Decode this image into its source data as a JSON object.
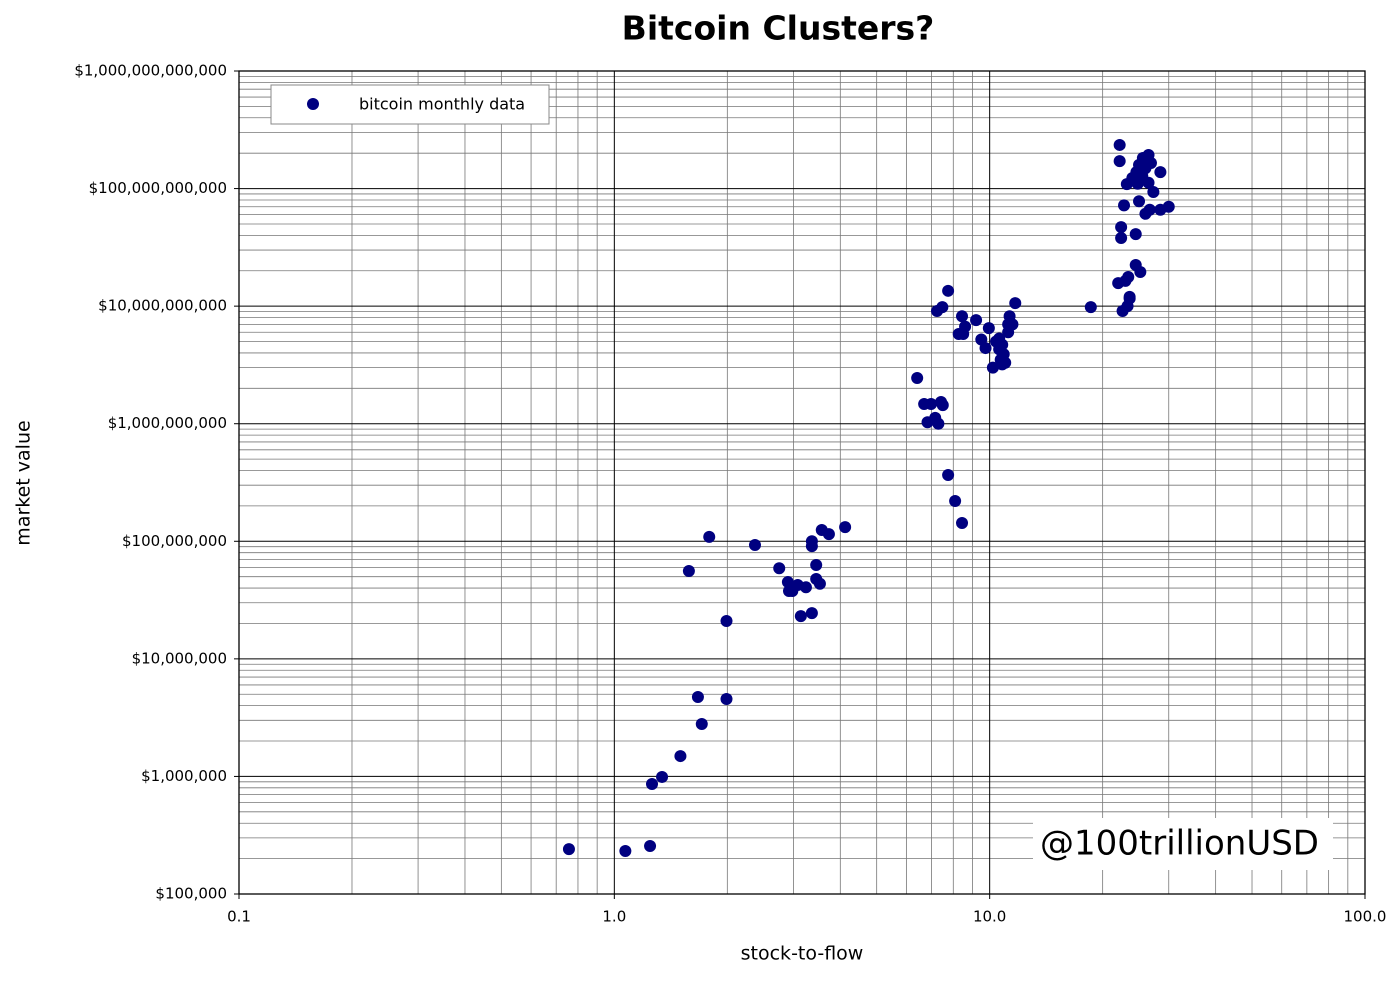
{
  "chart_data": {
    "type": "scatter",
    "title": "Bitcoin Clusters?",
    "xlabel": "stock-to-flow",
    "ylabel": "market value",
    "watermark": "@100trillionUSD",
    "xscale": "log",
    "yscale": "log",
    "grid": true,
    "legend": "upper left",
    "xlim": [
      0.1,
      100
    ],
    "ylim": [
      100000,
      1000000000000
    ],
    "xticks": [
      0.1,
      {
        "value": 1,
        "label": "1.0"
      },
      {
        "value": 10,
        "label": "10.0"
      },
      {
        "value": 100,
        "label": "100.0"
      }
    ],
    "yticks": [
      {
        "value": 100000,
        "label": "$100,000"
      },
      {
        "value": 1000000,
        "label": "$1,000,000"
      },
      {
        "value": 10000000,
        "label": "$10,000,000"
      },
      {
        "value": 100000000,
        "label": "$100,000,000"
      },
      {
        "value": 1000000000,
        "label": "$1,000,000,000"
      },
      {
        "value": 10000000000,
        "label": "$10,000,000,000"
      },
      {
        "value": 100000000000,
        "label": "$100,000,000,000"
      },
      {
        "value": 1000000000000,
        "label": "$1,000,000,000,000"
      }
    ],
    "series": [
      {
        "name": "bitcoin monthly data",
        "color": "#000080",
        "x": [
          0.757,
          1.07,
          1.245,
          1.26,
          1.34,
          1.5,
          1.67,
          1.71,
          1.99,
          1.99,
          1.58,
          1.79,
          2.37,
          2.75,
          2.9,
          2.92,
          2.98,
          3.08,
          3.24,
          3.14,
          3.36,
          3.36,
          3.36,
          3.45,
          3.45,
          3.53,
          3.57,
          3.73,
          4.12,
          6.41,
          6.69,
          6.98,
          6.83,
          7.16,
          7.3,
          7.42,
          7.5,
          7.75,
          8.09,
          8.44,
          7.24,
          7.48,
          7.75,
          8.44,
          8.27,
          8.6,
          8.5,
          9.2,
          9.5,
          9.75,
          9.95,
          10.2,
          10.4,
          10.6,
          10.6,
          10.7,
          10.8,
          10.9,
          10.8,
          11.0,
          11.2,
          11.2,
          11.3,
          11.5,
          11.7,
          18.6,
          22.0,
          22.6,
          23.0,
          23.3,
          23.6,
          23.6,
          23.4,
          24.5,
          25.2,
          24.5,
          22.4,
          22.4,
          22.8,
          25.0,
          26.0,
          26.7,
          28.5,
          30.0,
          27.3,
          23.2,
          22.2,
          22.2,
          26.5,
          28.5,
          24.0,
          24.6,
          25.0,
          25.6,
          24.8,
          26.5,
          26.9,
          26.0,
          25.5
        ],
        "values": [
          241000,
          232000,
          256000,
          863000,
          990000,
          1490000,
          4740000,
          2790000,
          4560000,
          21000000,
          55900000,
          109000000,
          93000000,
          59000000,
          45000000,
          37800000,
          37800000,
          42500000,
          40600000,
          23100000,
          24500000,
          100000000,
          91000000,
          62800000,
          47800000,
          43500000,
          124700000,
          115000000,
          132000000,
          2450000000,
          1470000000,
          1470000000,
          1030000000,
          1120000000,
          1000000000,
          1530000000,
          1440000000,
          366000000,
          220000000,
          143000000,
          9100000000,
          9800000000,
          13500000000,
          8200000000,
          5800000000,
          6700000000,
          5800000000,
          7600000000,
          5200000000,
          4400000000,
          6500000000,
          3000000000,
          5000000000,
          4300000000,
          5300000000,
          3500000000,
          3200000000,
          3900000000,
          4700000000,
          3300000000,
          6000000000,
          7000000000,
          8200000000,
          7000000000,
          10600000000,
          9800000000,
          15700000000,
          9100000000,
          16400000000,
          10000000000,
          11600000000,
          12000000000,
          17700000000,
          22400000000,
          19500000000,
          41000000000,
          38000000000,
          47000000000,
          72000000000,
          78000000000,
          61000000000,
          66000000000,
          66000000000,
          70000000000,
          93500000000,
          109000000000,
          235000000000,
          171000000000,
          193000000000,
          138000000000,
          123000000000,
          138000000000,
          159000000000,
          182000000000,
          110000000000,
          112000000000,
          165000000000,
          149000000000,
          128000000000
        ]
      }
    ]
  }
}
